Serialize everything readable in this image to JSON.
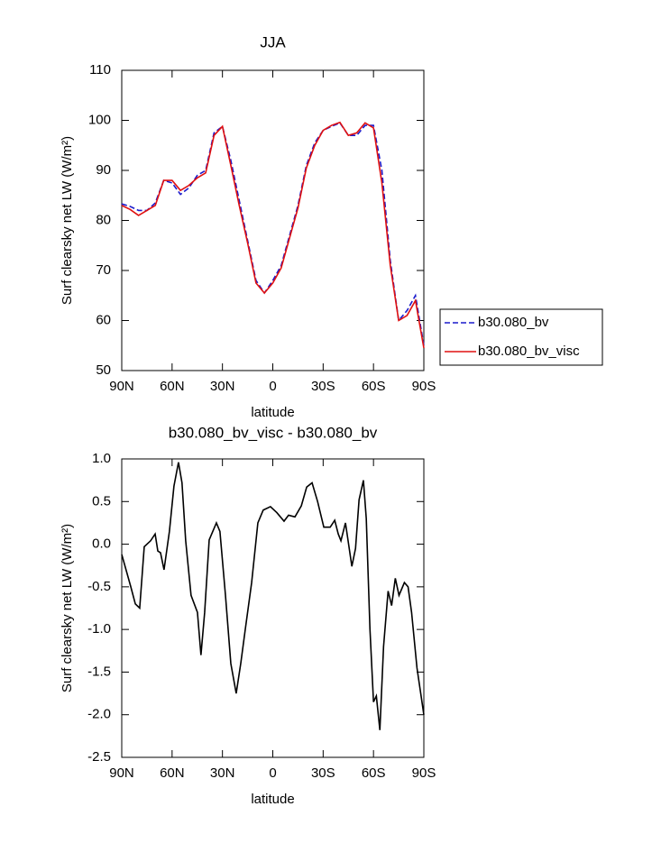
{
  "chart_data": [
    {
      "type": "line",
      "title": "JJA",
      "xlabel": "latitude",
      "ylabel": "Surf clearsky net LW (W/m²)",
      "x": [
        90,
        85,
        80,
        75,
        70,
        65,
        60,
        55,
        50,
        45,
        40,
        35,
        30,
        25,
        20,
        15,
        10,
        5,
        0,
        -5,
        -10,
        -15,
        -20,
        -25,
        -30,
        -35,
        -40,
        -45,
        -50,
        -55,
        -60,
        -65,
        -70,
        -75,
        -80,
        -85,
        -90
      ],
      "series": [
        {
          "name": "b30.080_bv",
          "color": "#1a1acc",
          "linestyle": "dashed",
          "values": [
            83.3,
            82.8,
            82,
            82,
            83.5,
            88,
            87.5,
            85.2,
            86.5,
            89,
            90,
            97.5,
            98.8,
            92,
            84,
            76,
            68,
            65.5,
            68,
            71,
            77,
            83,
            91,
            95.5,
            98,
            98.8,
            99.5,
            97,
            97,
            99,
            99,
            90,
            72,
            60,
            62,
            65,
            55
          ]
        },
        {
          "name": "b30.080_bv_visc",
          "color": "#e01010",
          "linestyle": "solid",
          "values": [
            83,
            82.2,
            81,
            82,
            83,
            88,
            88,
            86,
            87,
            88.5,
            89.5,
            97,
            98.8,
            91,
            83,
            75.5,
            67.5,
            65.5,
            67.5,
            70.5,
            76.5,
            82.5,
            90.5,
            95,
            98,
            99,
            99.6,
            97,
            97.5,
            99.5,
            98.5,
            87.5,
            71,
            60,
            61,
            64,
            54.5
          ]
        }
      ],
      "xlim": [
        90,
        -90
      ],
      "xticks": [
        {
          "value": 90,
          "label": "90N"
        },
        {
          "value": 60,
          "label": "60N"
        },
        {
          "value": 30,
          "label": "30N"
        },
        0,
        {
          "value": -30,
          "label": "30S"
        },
        {
          "value": -60,
          "label": "60S"
        },
        {
          "value": -90,
          "label": "90S"
        }
      ],
      "ylim": [
        50,
        110
      ],
      "yticks": [
        50,
        60,
        70,
        80,
        90,
        100,
        110
      ],
      "legend": "outside right"
    },
    {
      "type": "line",
      "title": "b30.080_bv_visc - b30.080_bv",
      "xlabel": "latitude",
      "ylabel": "Surf clearsky net LW (W/m²)",
      "x": [
        90,
        84.6,
        81.9,
        79.3,
        76.6,
        72.8,
        70.1,
        68.5,
        66.9,
        64.8,
        61.6,
        58.9,
        56.2,
        54.1,
        51.9,
        48.7,
        44.9,
        42.8,
        40.6,
        37.9,
        33.6,
        31.5,
        28.2,
        25,
        21.8,
        19.1,
        16.4,
        12.6,
        8.9,
        5.7,
        1.4,
        -2.4,
        -6.7,
        -9.4,
        -13.2,
        -17,
        -20.2,
        -23.4,
        -26.7,
        -30.4,
        -34.2,
        -36.9,
        -39,
        -40.6,
        -43.3,
        -47.1,
        -49.3,
        -51.4,
        -54,
        -55.7,
        -57.9,
        -60,
        -61.7,
        -63.8,
        -66,
        -68.7,
        -70.8,
        -73,
        -75.2,
        -78.4,
        -80.6,
        -82.7,
        -85.9,
        -90
      ],
      "values": [
        -0.12,
        -0.5,
        -0.7,
        -0.75,
        -0.03,
        0.04,
        0.12,
        -0.08,
        -0.1,
        -0.3,
        0.15,
        0.68,
        0.96,
        0.72,
        0.04,
        -0.6,
        -0.8,
        -1.3,
        -0.8,
        0.05,
        0.25,
        0.15,
        -0.6,
        -1.4,
        -1.75,
        -1.4,
        -1,
        -0.45,
        0.25,
        0.4,
        0.44,
        0.37,
        0.27,
        0.34,
        0.32,
        0.45,
        0.67,
        0.72,
        0.5,
        0.2,
        0.2,
        0.28,
        0.12,
        0.04,
        0.25,
        -0.26,
        -0.05,
        0.52,
        0.75,
        0.3,
        -1,
        -1.85,
        -1.78,
        -2.18,
        -1.2,
        -0.55,
        -0.72,
        -0.4,
        -0.6,
        -0.45,
        -0.5,
        -0.8,
        -1.45,
        -2
      ],
      "color": "#000000",
      "xlim": [
        90,
        -90
      ],
      "xticks": [
        {
          "value": 90,
          "label": "90N"
        },
        {
          "value": 60,
          "label": "60N"
        },
        {
          "value": 30,
          "label": "30N"
        },
        0,
        {
          "value": -30,
          "label": "30S"
        },
        {
          "value": -60,
          "label": "60S"
        },
        {
          "value": -90,
          "label": "90S"
        }
      ],
      "ylim": [
        -2.5,
        1
      ],
      "yticks": [
        {
          "value": -2.5,
          "label": "-2.5"
        },
        {
          "value": -2,
          "label": "-2.0"
        },
        {
          "value": -1.5,
          "label": "-1.5"
        },
        {
          "value": -1,
          "label": "-1.0"
        },
        {
          "value": -0.5,
          "label": "-0.5"
        },
        {
          "value": 0,
          "label": "0.0"
        },
        {
          "value": 0.5,
          "label": "0.5"
        },
        {
          "value": 1,
          "label": "1.0"
        }
      ]
    }
  ]
}
